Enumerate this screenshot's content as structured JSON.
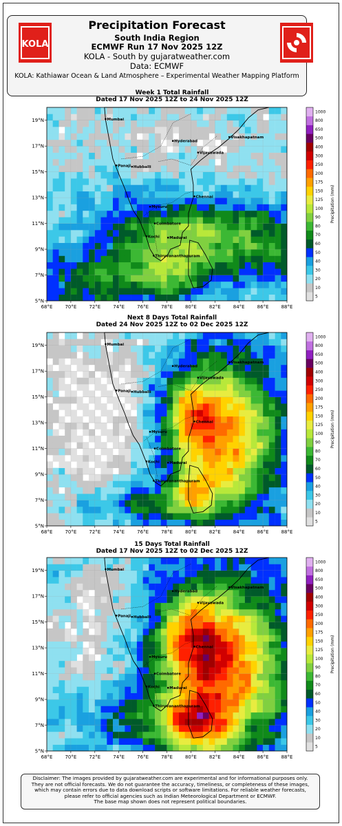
{
  "header": {
    "title": "Precipitation Forecast",
    "region": "South India Region",
    "run": "ECMWF Run 17 Nov 2025 12Z",
    "source_line": "KOLA - South by gujaratweather.com",
    "data_line": "Data: ECMWF",
    "platform": "KOLA: Kathiawar Ocean & Land Atmosphere – Experimental Weather Mapping Platform",
    "logo_text": "KOLA"
  },
  "panels": [
    {
      "title": "Week 1 Total Rainfall",
      "dated": "Dated 17 Nov 2025 12Z to 24 Nov 2025 12Z"
    },
    {
      "title": "Next 8 Days Total Rainfall",
      "dated": "Dated 24 Nov 2025 12Z to 02 Dec 2025 12Z"
    },
    {
      "title": "15 Days Total Rainfall",
      "dated": "Dated 17 Nov 2025 12Z to 02 Dec 2025 12Z"
    }
  ],
  "axes": {
    "lon_ticks": [
      "68°E",
      "70°E",
      "72°E",
      "74°E",
      "76°E",
      "78°E",
      "80°E",
      "82°E",
      "84°E",
      "86°E",
      "88°E"
    ],
    "lat_ticks": [
      "19°N",
      "17°N",
      "15°N",
      "13°N",
      "11°N",
      "9°N",
      "7°N",
      "5°N"
    ],
    "colorbar_label": "Precipitation (mm)",
    "colorbar_ticks": [
      "1000",
      "800",
      "650",
      "500",
      "400",
      "300",
      "250",
      "200",
      "175",
      "150",
      "125",
      "100",
      "90",
      "80",
      "70",
      "60",
      "50",
      "40",
      "30",
      "20",
      "10",
      "5"
    ]
  },
  "colors": [
    "#e0e0e0",
    "#c6c6c6",
    "#8fe0f0",
    "#3cc8e8",
    "#1aa0e0",
    "#0030ff",
    "#005a2a",
    "#108a1a",
    "#3cb834",
    "#80d040",
    "#b8e83a",
    "#e8ec40",
    "#ffd200",
    "#ffa000",
    "#ff6a00",
    "#ff2000",
    "#d00000",
    "#a00000",
    "#6a0060",
    "#9020c0",
    "#c070e0",
    "#e0b0f0"
  ],
  "cities": [
    "Mumbai",
    "Hyderabad",
    "Visakhapatnam",
    "Vijayawada",
    "Panaji",
    "Hubballi",
    "Chennai",
    "Mysuru",
    "Coimbatore",
    "Kochi",
    "Madurai",
    "Thiruvananthapuram"
  ],
  "disclaimer": [
    "Disclaimer: The images provided by gujaratweather.com are experimental and for informational purposes only.",
    "They are not official forecasts. We do not guarantee the accuracy, timeliness, or completeness of these images,",
    "which may contain errors due to data download scripts or software limitations. For reliable weather forecasts,",
    "please refer to official agencies such as Indian Meteorological Department or ECMWF.",
    "The base map shown does not represent political boundaries."
  ]
}
